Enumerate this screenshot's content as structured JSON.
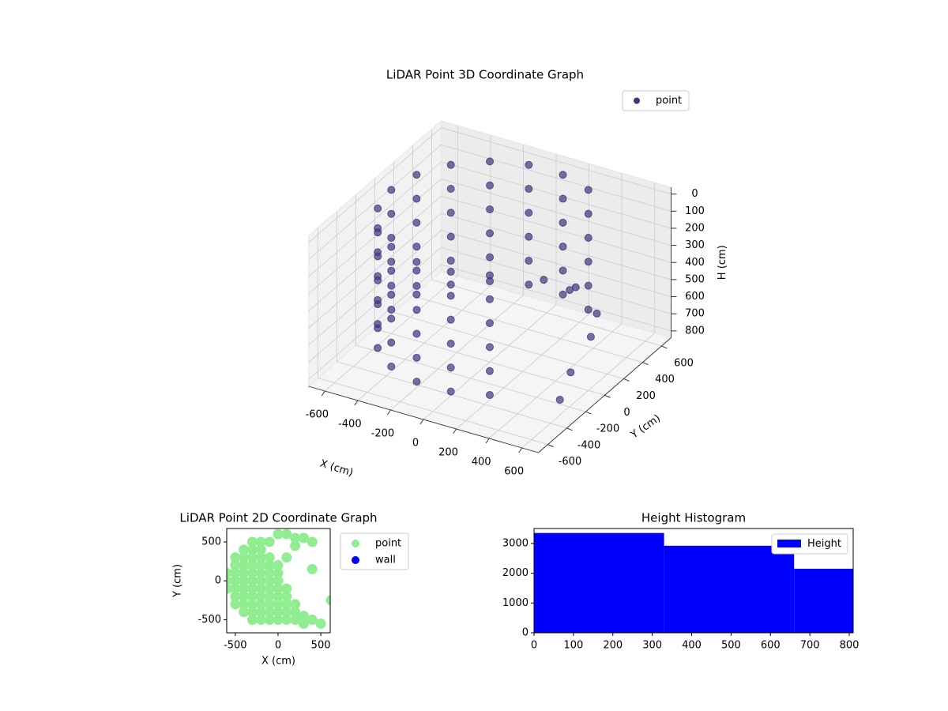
{
  "chart_data": [
    {
      "type": "scatter3d",
      "title": "LiDAR Point 3D Coordinate Graph",
      "xlabel": "X (cm)",
      "ylabel": "Y (cm)",
      "zlabel": "H (cm)",
      "xlim": [
        -700,
        700
      ],
      "ylim": [
        -700,
        700
      ],
      "zlim": [
        840,
        -40
      ],
      "xticks": [
        -600,
        -400,
        -200,
        0,
        200,
        400,
        600
      ],
      "yticks": [
        -600,
        -400,
        -200,
        0,
        200,
        400,
        600
      ],
      "zticks": [
        0,
        100,
        200,
        300,
        400,
        500,
        600,
        700,
        800
      ],
      "grid": true,
      "legend": "upper right",
      "series": [
        {
          "name": "point",
          "color": "#46327e",
          "x": [
            300,
            300,
            300,
            300,
            300,
            300,
            104,
            104,
            104,
            104,
            104,
            104,
            -104,
            -104,
            -104,
            -104,
            -104,
            -104,
            -300,
            -300,
            -300,
            -300,
            -300,
            -300,
            -460,
            -460,
            -460,
            -460,
            -460,
            -460,
            -564,
            -564,
            -564,
            -564,
            -564,
            -564,
            -600,
            -600,
            -600,
            -600,
            -600,
            -600,
            -564,
            -564,
            -564,
            -564,
            -564,
            -564,
            -460,
            -460,
            -460,
            -460,
            -460,
            -460,
            -300,
            -300,
            -300,
            -300,
            -300,
            -300,
            -104,
            -104,
            -104,
            -104,
            -104,
            -104,
            104,
            104,
            104,
            104,
            104,
            104,
            300,
            300,
            300,
            300,
            300,
            300,
            350,
            400,
            450,
            500,
            550,
            300,
            600
          ],
          "y": [
            520,
            520,
            520,
            520,
            520,
            520,
            591,
            591,
            591,
            591,
            591,
            591,
            591,
            591,
            591,
            591,
            591,
            591,
            520,
            520,
            520,
            520,
            520,
            520,
            386,
            386,
            386,
            386,
            386,
            386,
            205,
            205,
            205,
            205,
            205,
            205,
            0,
            0,
            0,
            0,
            0,
            0,
            -205,
            -205,
            -205,
            -205,
            -205,
            -205,
            -386,
            -386,
            -386,
            -386,
            -386,
            -386,
            -520,
            -520,
            -520,
            -520,
            -520,
            -520,
            -591,
            -591,
            -591,
            -591,
            -591,
            -591,
            -591,
            -591,
            -591,
            -591,
            -591,
            -591,
            -520,
            -520,
            -520,
            -520,
            -520,
            -520,
            300,
            150,
            350,
            200,
            -100,
            50,
            -300
          ],
          "z": [
            0,
            140,
            280,
            420,
            560,
            700,
            0,
            140,
            280,
            420,
            560,
            700,
            0,
            140,
            280,
            420,
            560,
            700,
            0,
            140,
            280,
            420,
            560,
            700,
            0,
            140,
            280,
            420,
            560,
            700,
            0,
            140,
            280,
            420,
            560,
            700,
            0,
            140,
            280,
            420,
            560,
            700,
            0,
            140,
            280,
            420,
            560,
            700,
            0,
            140,
            280,
            420,
            560,
            700,
            0,
            140,
            280,
            420,
            560,
            700,
            0,
            140,
            280,
            420,
            560,
            700,
            0,
            140,
            280,
            420,
            560,
            700,
            0,
            140,
            280,
            420,
            560,
            700,
            450,
            380,
            600,
            650,
            700,
            300,
            750
          ]
        }
      ]
    },
    {
      "type": "scatter",
      "title": "LiDAR Point 2D Coordinate Graph",
      "xlabel": "X (cm)",
      "ylabel": "Y (cm)",
      "xlim": [
        -600,
        610
      ],
      "ylim": [
        -667,
        672
      ],
      "xticks": [
        -500,
        0,
        500
      ],
      "yticks": [
        -500,
        0,
        500
      ],
      "legend": "outside right",
      "series": [
        {
          "name": "point",
          "color": "#90ee90",
          "x": [
            -600,
            -600,
            -600,
            -500,
            -500,
            -500,
            -500,
            -500,
            -500,
            -500,
            -400,
            -400,
            -400,
            -400,
            -400,
            -400,
            -400,
            -400,
            -400,
            -300,
            -300,
            -300,
            -300,
            -300,
            -300,
            -300,
            -300,
            -300,
            -300,
            -300,
            -200,
            -200,
            -200,
            -200,
            -200,
            -200,
            -200,
            -200,
            -200,
            -200,
            -200,
            -100,
            -100,
            -100,
            -100,
            -100,
            -100,
            -100,
            -100,
            -100,
            -100,
            0,
            0,
            0,
            0,
            0,
            0,
            0,
            0,
            0,
            100,
            100,
            100,
            100,
            100,
            100,
            100,
            200,
            200,
            200,
            200,
            200,
            300,
            300,
            300,
            400,
            400,
            400,
            500,
            620
          ],
          "y": [
            -100,
            0,
            100,
            -300,
            -200,
            -100,
            0,
            100,
            200,
            300,
            -400,
            -300,
            -200,
            -100,
            0,
            100,
            200,
            300,
            400,
            -500,
            -400,
            -300,
            -200,
            -100,
            0,
            100,
            200,
            300,
            400,
            500,
            -500,
            -400,
            -300,
            -200,
            -100,
            0,
            100,
            200,
            300,
            400,
            500,
            -500,
            -400,
            -300,
            -200,
            -100,
            0,
            100,
            200,
            300,
            500,
            -500,
            -400,
            -300,
            -200,
            -100,
            0,
            100,
            200,
            600,
            -500,
            -400,
            -300,
            -200,
            -100,
            300,
            600,
            -500,
            -400,
            -300,
            450,
            550,
            -550,
            -450,
            550,
            -500,
            150,
            500,
            -550,
            -250
          ]
        },
        {
          "name": "wall",
          "color": "#0000ff",
          "x": [],
          "y": []
        }
      ]
    },
    {
      "type": "histogram",
      "title": "Height Histogram",
      "bins": [
        0,
        330,
        660,
        810
      ],
      "xlim": [
        0,
        810
      ],
      "ylim": [
        0,
        3500
      ],
      "xticks": [
        0,
        100,
        200,
        300,
        400,
        500,
        600,
        700,
        800
      ],
      "yticks": [
        0,
        1000,
        2000,
        3000
      ],
      "legend": "upper right",
      "series": [
        {
          "name": "Height",
          "color": "#0000ff",
          "values": [
            3350,
            2920,
            2150
          ]
        }
      ]
    }
  ]
}
